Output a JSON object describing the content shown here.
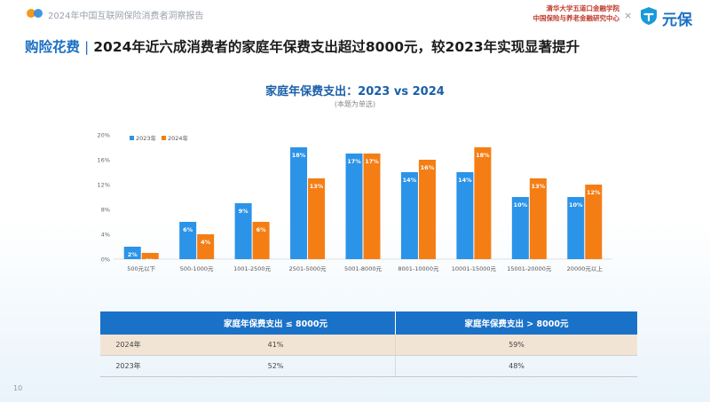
{
  "header": {
    "report_title": "2024年中国互联网保险消费者洞察报告",
    "brand_line1": "清华大学五道口金融学院",
    "brand_line2": "中国保险与养老金融研究中心",
    "brand_x": "×",
    "logo_text": "元保"
  },
  "headline": {
    "tag": "购险花费",
    "sep": "|",
    "text": "2024年近六成消费者的家庭年保费支出超过8000元，较2023年实现显著提升"
  },
  "chart_data": {
    "type": "bar",
    "title": "家庭年保费支出：2023 vs 2024",
    "subtitle": "(本题为单选)",
    "categories": [
      "500元以下",
      "500-1000元",
      "1001-2500元",
      "2501-5000元",
      "5001-8000元",
      "8001-10000元",
      "10001-15000元",
      "15001-20000元",
      "20000元以上"
    ],
    "series": [
      {
        "name": "2023年",
        "color": "#2b93e8",
        "values": [
          2,
          6,
          9,
          18,
          17,
          14,
          14,
          10,
          10
        ]
      },
      {
        "name": "2024年",
        "color": "#f47e14",
        "values": [
          1,
          4,
          6,
          13,
          17,
          16,
          18,
          13,
          12
        ]
      }
    ],
    "ylim": [
      0,
      20
    ],
    "yticks": [
      "0%",
      "4%",
      "8%",
      "12%",
      "16%",
      "20%"
    ],
    "legend_position": "top-left",
    "grid": false
  },
  "table": {
    "headers": [
      "",
      "家庭年保费支出 ≤ 8000元",
      "家庭年保费支出 > 8000元"
    ],
    "rows": [
      {
        "label": "2024年",
        "values": [
          "41%",
          "59%"
        ]
      },
      {
        "label": "2023年",
        "values": [
          "52%",
          "48%"
        ]
      }
    ]
  },
  "page_number": "10",
  "colors": {
    "accent": "#1a6fc4",
    "series_2023": "#2b93e8",
    "series_2024": "#f47e14",
    "table_header": "#1a72c8",
    "table_row_highlight": "#f2e4d4"
  }
}
